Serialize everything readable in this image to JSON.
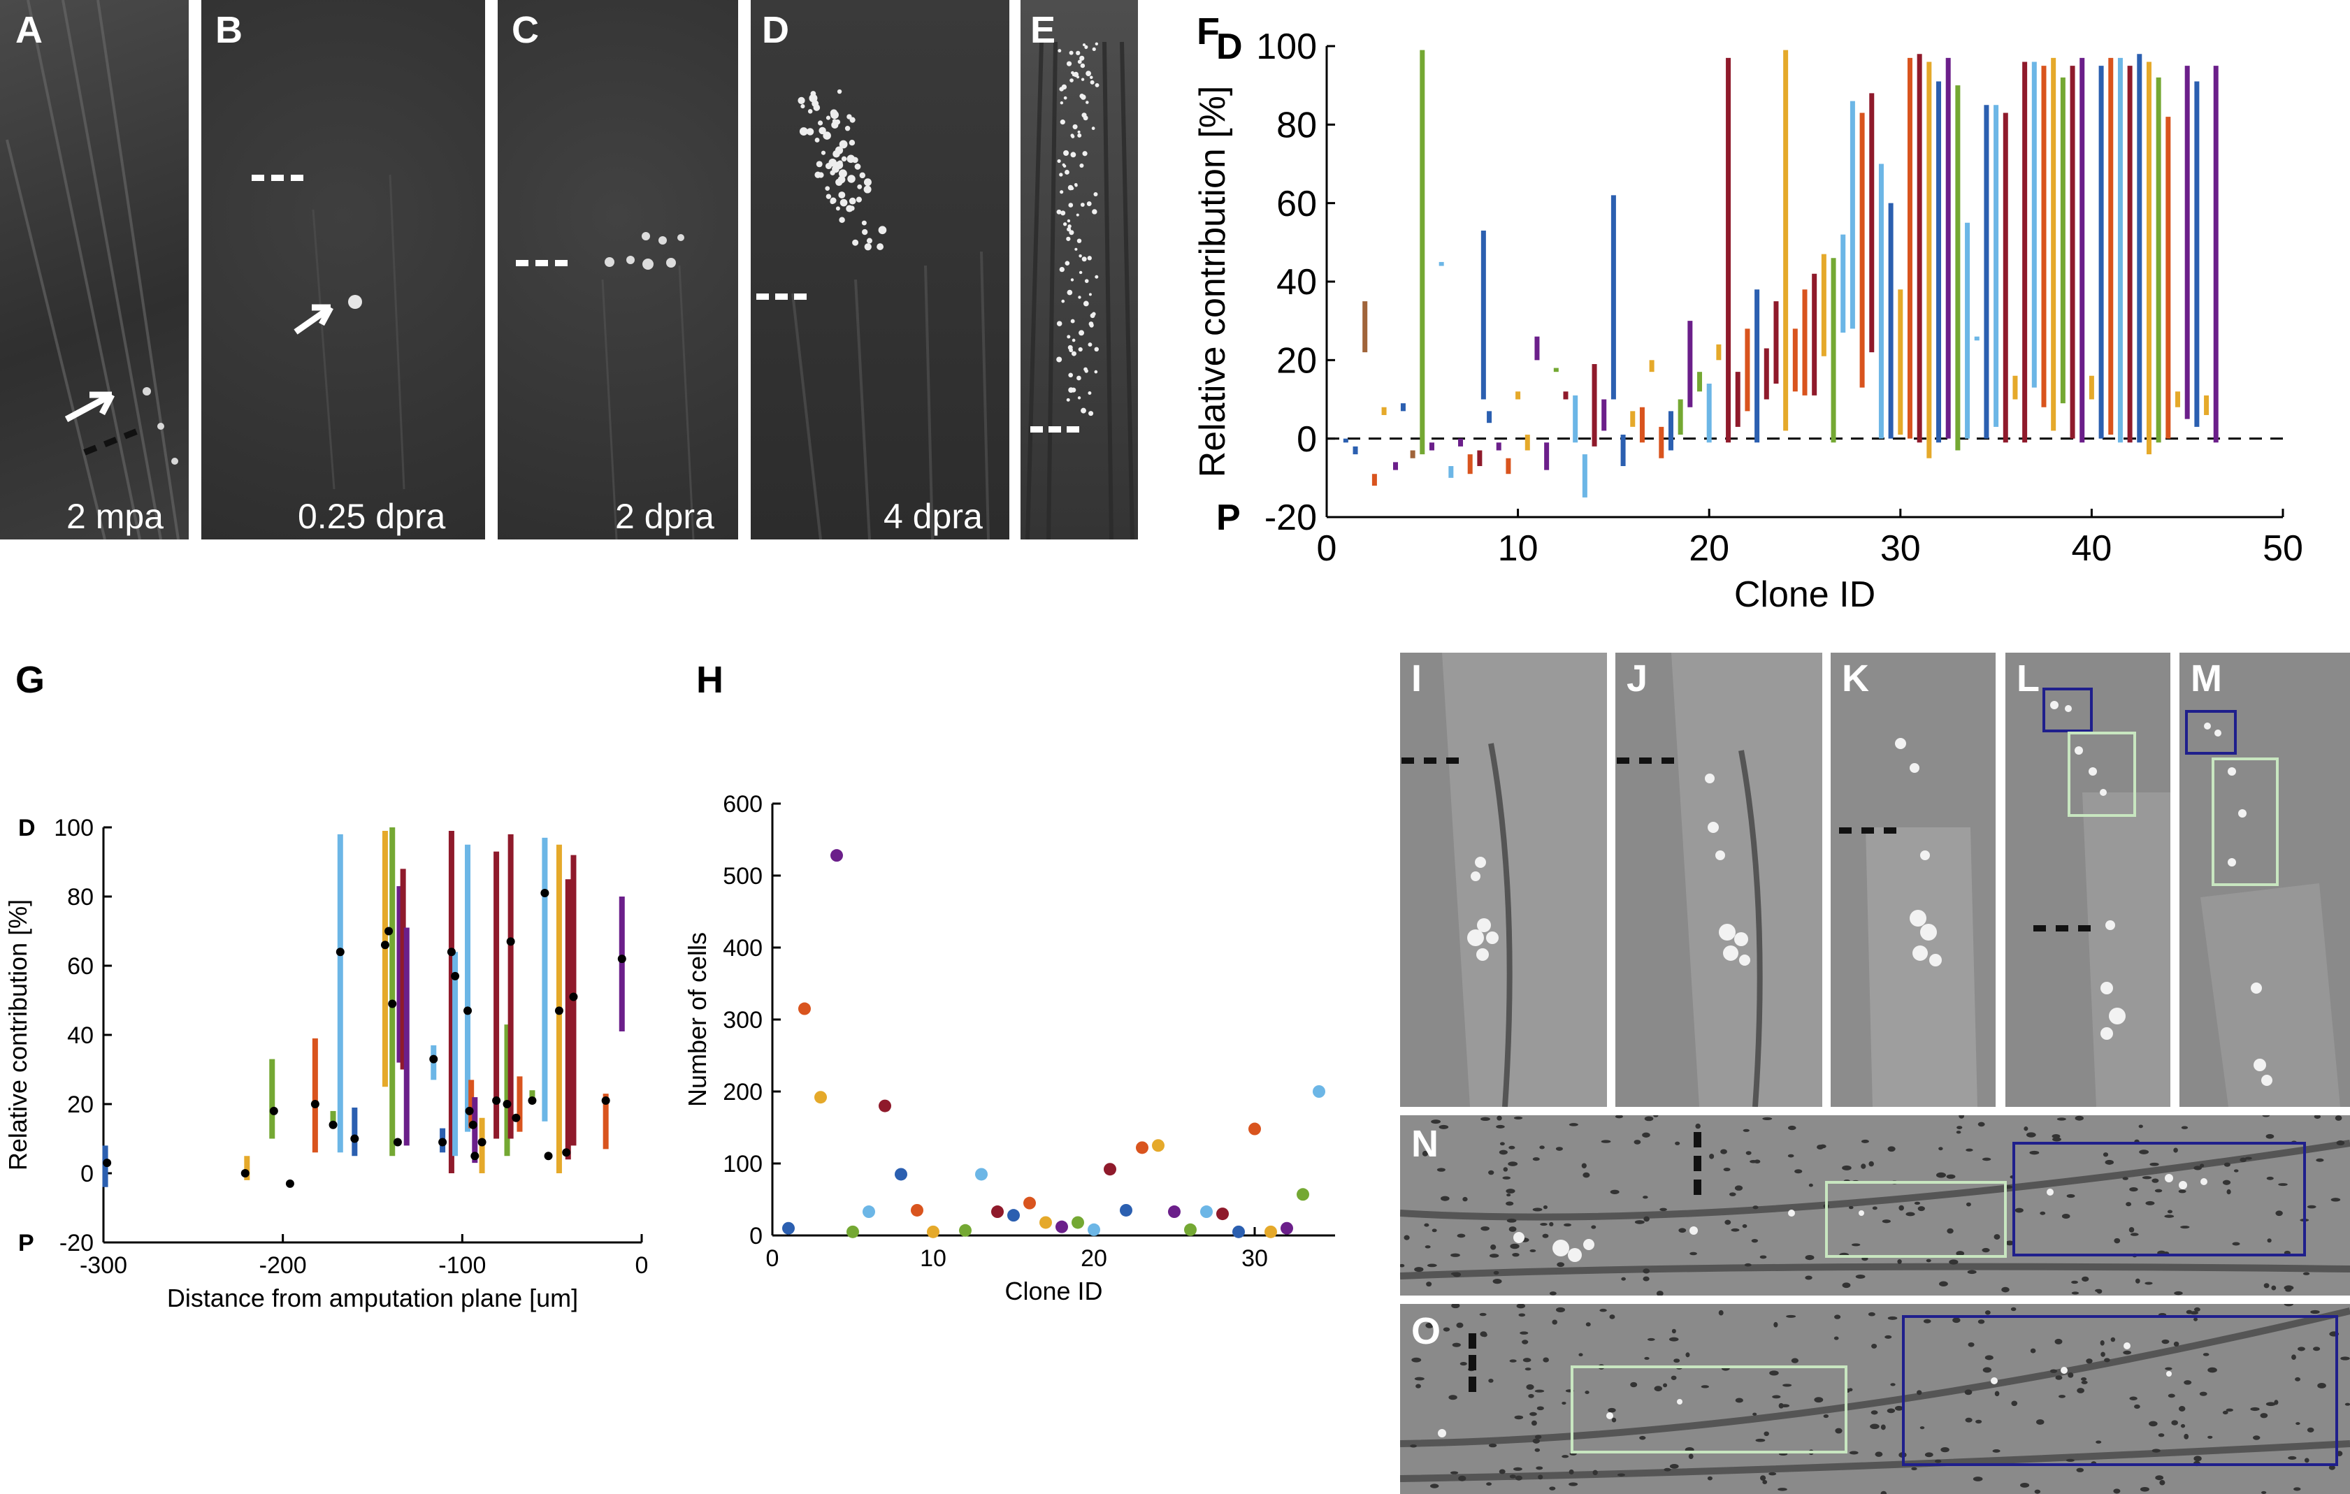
{
  "panels": {
    "A": {
      "label": "A",
      "caption": "2 mpa"
    },
    "B": {
      "label": "B",
      "caption": "0.25 dpra"
    },
    "C": {
      "label": "C",
      "caption": "2 dpra"
    },
    "D": {
      "label": "D",
      "caption": "4 dpra"
    },
    "E": {
      "label": "E",
      "caption": ""
    },
    "F": {
      "label": "F"
    },
    "G": {
      "label": "G"
    },
    "H": {
      "label": "H"
    },
    "I": {
      "label": "I"
    },
    "J": {
      "label": "J"
    },
    "K": {
      "label": "K"
    },
    "L": {
      "label": "L"
    },
    "M": {
      "label": "M"
    },
    "N": {
      "label": "N"
    },
    "O": {
      "label": "O"
    }
  },
  "colors": {
    "dark_blue": "#2b5fb0",
    "light_blue": "#6cb6e6",
    "orange": "#d9541e",
    "gold": "#e5a92a",
    "purple": "#6b1f8a",
    "green": "#74a833",
    "dark_red": "#8f1a2b",
    "brown": "#a0643a",
    "box_green": "#c8e6c0",
    "box_navy": "#1f1f8c"
  },
  "chart_data": [
    {
      "id": "F",
      "type": "bar",
      "title": "",
      "xlabel": "Clone ID",
      "ylabel": "Relative contribution [%]",
      "top_marker": "D",
      "bottom_marker": "P",
      "xlim": [
        0,
        50
      ],
      "ylim": [
        -20,
        100
      ],
      "xticks": [
        0,
        10,
        20,
        30,
        40,
        50
      ],
      "yticks": [
        -20,
        0,
        20,
        40,
        60,
        80,
        100
      ],
      "reference_line": 0,
      "ranges": [
        [
          1,
          -1,
          0,
          "dark_blue"
        ],
        [
          1.5,
          -4,
          -2,
          "dark_blue"
        ],
        [
          2,
          22,
          35,
          "brown"
        ],
        [
          2.5,
          -12,
          -9,
          "orange"
        ],
        [
          3,
          6,
          8,
          "gold"
        ],
        [
          3.6,
          -8,
          -6,
          "purple"
        ],
        [
          4,
          7,
          9,
          "dark_blue"
        ],
        [
          4.5,
          -5,
          -3,
          "brown"
        ],
        [
          5,
          -4,
          99,
          "green"
        ],
        [
          5.5,
          -3,
          -1,
          "purple"
        ],
        [
          6,
          44,
          45,
          "light_blue"
        ],
        [
          6.5,
          -10,
          -7,
          "light_blue"
        ],
        [
          7,
          -2,
          0,
          "purple"
        ],
        [
          7.5,
          -9,
          -4,
          "orange"
        ],
        [
          8,
          -7,
          -3,
          "dark_red"
        ],
        [
          8.2,
          10,
          53,
          "dark_blue"
        ],
        [
          8.5,
          4,
          7,
          "dark_blue"
        ],
        [
          9,
          -3,
          -1,
          "purple"
        ],
        [
          9.5,
          -9,
          -5,
          "orange"
        ],
        [
          10,
          10,
          12,
          "gold"
        ],
        [
          10.5,
          -3,
          1,
          "gold"
        ],
        [
          11,
          20,
          26,
          "purple"
        ],
        [
          11.5,
          -8,
          -1,
          "purple"
        ],
        [
          12,
          17,
          18,
          "green"
        ],
        [
          12.5,
          10,
          12,
          "dark_red"
        ],
        [
          13,
          -1,
          11,
          "light_blue"
        ],
        [
          13.5,
          -15,
          -4,
          "light_blue"
        ],
        [
          14,
          -2,
          19,
          "dark_red"
        ],
        [
          14.5,
          2,
          10,
          "purple"
        ],
        [
          15,
          10,
          62,
          "dark_blue"
        ],
        [
          15.5,
          -7,
          1,
          "dark_blue"
        ],
        [
          16,
          3,
          7,
          "gold"
        ],
        [
          16.5,
          -1,
          8,
          "orange"
        ],
        [
          17,
          17,
          20,
          "gold"
        ],
        [
          17.5,
          -5,
          3,
          "orange"
        ],
        [
          18,
          -3,
          7,
          "dark_blue"
        ],
        [
          18.5,
          1,
          10,
          "green"
        ],
        [
          19,
          8,
          30,
          "purple"
        ],
        [
          19.5,
          12,
          17,
          "green"
        ],
        [
          20,
          -1,
          14,
          "light_blue"
        ],
        [
          20.5,
          20,
          24,
          "gold"
        ],
        [
          21,
          -1,
          97,
          "dark_red"
        ],
        [
          21.5,
          3,
          17,
          "dark_red"
        ],
        [
          22,
          7,
          28,
          "orange"
        ],
        [
          22.5,
          -1,
          38,
          "dark_blue"
        ],
        [
          23,
          10,
          23,
          "dark_red"
        ],
        [
          23.5,
          14,
          35,
          "dark_red"
        ],
        [
          24,
          2,
          99,
          "gold"
        ],
        [
          24.5,
          12,
          28,
          "orange"
        ],
        [
          25,
          11,
          38,
          "orange"
        ],
        [
          25.5,
          11,
          42,
          "dark_red"
        ],
        [
          26,
          21,
          47,
          "gold"
        ],
        [
          26.5,
          -1,
          46,
          "green"
        ],
        [
          27,
          27,
          52,
          "light_blue"
        ],
        [
          27.5,
          28,
          86,
          "light_blue"
        ],
        [
          28,
          13,
          83,
          "orange"
        ],
        [
          28.5,
          22,
          88,
          "dark_red"
        ],
        [
          29,
          0,
          70,
          "light_blue"
        ],
        [
          29.5,
          0,
          60,
          "dark_blue"
        ],
        [
          30,
          1,
          38,
          "gold"
        ],
        [
          30.5,
          0,
          97,
          "orange"
        ],
        [
          31,
          -1,
          98,
          "dark_red"
        ],
        [
          31.5,
          -5,
          96,
          "gold"
        ],
        [
          32,
          -1,
          91,
          "dark_blue"
        ],
        [
          32.5,
          0,
          97,
          "purple"
        ],
        [
          33,
          -3,
          90,
          "green"
        ],
        [
          33.5,
          0,
          55,
          "light_blue"
        ],
        [
          34,
          25,
          26,
          "light_blue"
        ],
        [
          34.5,
          0,
          85,
          "dark_blue"
        ],
        [
          35,
          3,
          85,
          "light_blue"
        ],
        [
          35.5,
          -1,
          83,
          "dark_red"
        ],
        [
          36,
          10,
          16,
          "gold"
        ],
        [
          36.5,
          -1,
          96,
          "dark_red"
        ],
        [
          37,
          13,
          96,
          "light_blue"
        ],
        [
          37.5,
          8,
          95,
          "orange"
        ],
        [
          38,
          2,
          97,
          "gold"
        ],
        [
          38.5,
          9,
          92,
          "green"
        ],
        [
          39,
          0,
          95,
          "dark_red"
        ],
        [
          39.5,
          -1,
          97,
          "purple"
        ],
        [
          40,
          10,
          16,
          "gold"
        ],
        [
          40.5,
          0,
          95,
          "dark_blue"
        ],
        [
          41,
          1,
          97,
          "orange"
        ],
        [
          41.5,
          -1,
          97,
          "light_blue"
        ],
        [
          42,
          -1,
          95,
          "dark_red"
        ],
        [
          42.5,
          -1,
          98,
          "dark_blue"
        ],
        [
          43,
          -4,
          96,
          "gold"
        ],
        [
          43.5,
          -1,
          92,
          "green"
        ],
        [
          44,
          0,
          82,
          "orange"
        ],
        [
          44.5,
          8,
          12,
          "gold"
        ],
        [
          45,
          5,
          95,
          "purple"
        ],
        [
          45.5,
          3,
          91,
          "dark_blue"
        ],
        [
          46,
          6,
          11,
          "gold"
        ],
        [
          46.5,
          -1,
          95,
          "purple"
        ]
      ]
    },
    {
      "id": "G",
      "type": "scatter",
      "title": "",
      "xlabel": "Distance from amputation plane [um]",
      "ylabel": "Relative contribution [%]",
      "top_marker": "D",
      "bottom_marker": "P",
      "xlim": [
        -300,
        0
      ],
      "ylim": [
        -20,
        100
      ],
      "xticks": [
        -300,
        -200,
        -100,
        0
      ],
      "yticks": [
        -20,
        0,
        20,
        40,
        60,
        80,
        100
      ],
      "bars": [
        [
          -299,
          -4,
          8,
          "dark_blue"
        ],
        [
          -220,
          -2,
          5,
          "gold"
        ],
        [
          -206,
          10,
          33,
          "green"
        ],
        [
          -182,
          6,
          39,
          "orange"
        ],
        [
          -172,
          13,
          18,
          "green"
        ],
        [
          -168,
          6,
          98,
          "light_blue"
        ],
        [
          -160,
          5,
          19,
          "dark_blue"
        ],
        [
          -143,
          25,
          99,
          "gold"
        ],
        [
          -139,
          5,
          100,
          "green"
        ],
        [
          -135,
          32,
          83,
          "purple"
        ],
        [
          -133,
          30,
          88,
          "dark_red"
        ],
        [
          -131,
          8,
          71,
          "purple"
        ],
        [
          -116,
          27,
          37,
          "light_blue"
        ],
        [
          -111,
          6,
          13,
          "dark_blue"
        ],
        [
          -106,
          0,
          99,
          "dark_red"
        ],
        [
          -104,
          5,
          64,
          "light_blue"
        ],
        [
          -97,
          12,
          95,
          "light_blue"
        ],
        [
          -95,
          13,
          27,
          "orange"
        ],
        [
          -93,
          3,
          22,
          "purple"
        ],
        [
          -89,
          0,
          16,
          "gold"
        ],
        [
          -81,
          10,
          93,
          "dark_red"
        ],
        [
          -75,
          5,
          43,
          "green"
        ],
        [
          -73,
          10,
          98,
          "dark_red"
        ],
        [
          -68,
          12,
          28,
          "orange"
        ],
        [
          -61,
          20,
          24,
          "green"
        ],
        [
          -54,
          15,
          97,
          "light_blue"
        ],
        [
          -46,
          0,
          95,
          "gold"
        ],
        [
          -41,
          4,
          85,
          "dark_red"
        ],
        [
          -38,
          8,
          92,
          "dark_red"
        ],
        [
          -20,
          7,
          23,
          "orange"
        ],
        [
          -11,
          41,
          80,
          "purple"
        ]
      ],
      "means": [
        [
          -298,
          3
        ],
        [
          -221,
          0
        ],
        [
          -205,
          18
        ],
        [
          -196,
          -3
        ],
        [
          -182,
          20
        ],
        [
          -172,
          14
        ],
        [
          -168,
          64
        ],
        [
          -160,
          10
        ],
        [
          -143,
          66
        ],
        [
          -141,
          70
        ],
        [
          -139,
          49
        ],
        [
          -136,
          9
        ],
        [
          -116,
          33
        ],
        [
          -111,
          9
        ],
        [
          -106,
          64
        ],
        [
          -104,
          57
        ],
        [
          -97,
          47
        ],
        [
          -96,
          18
        ],
        [
          -94,
          14
        ],
        [
          -93,
          5
        ],
        [
          -89,
          9
        ],
        [
          -81,
          21
        ],
        [
          -75,
          20
        ],
        [
          -73,
          67
        ],
        [
          -70,
          16
        ],
        [
          -61,
          21
        ],
        [
          -54,
          81
        ],
        [
          -52,
          5
        ],
        [
          -46,
          47
        ],
        [
          -42,
          6
        ],
        [
          -38,
          51
        ],
        [
          -20,
          21
        ],
        [
          -11,
          62
        ]
      ]
    },
    {
      "id": "H",
      "type": "scatter",
      "title": "",
      "xlabel": "Clone ID",
      "ylabel": "Number of cells",
      "xlim": [
        0,
        35
      ],
      "ylim": [
        0,
        600
      ],
      "xticks": [
        0,
        10,
        20,
        30
      ],
      "yticks": [
        0,
        100,
        200,
        300,
        400,
        500,
        600
      ],
      "points": [
        [
          1,
          10,
          "dark_blue"
        ],
        [
          2,
          315,
          "orange"
        ],
        [
          3,
          192,
          "gold"
        ],
        [
          4,
          528,
          "purple"
        ],
        [
          5,
          5,
          "green"
        ],
        [
          6,
          33,
          "light_blue"
        ],
        [
          7,
          180,
          "dark_red"
        ],
        [
          8,
          85,
          "dark_blue"
        ],
        [
          9,
          35,
          "orange"
        ],
        [
          10,
          5,
          "gold"
        ],
        [
          12,
          7,
          "green"
        ],
        [
          13,
          85,
          "light_blue"
        ],
        [
          14,
          33,
          "dark_red"
        ],
        [
          15,
          28,
          "dark_blue"
        ],
        [
          16,
          45,
          "orange"
        ],
        [
          17,
          18,
          "gold"
        ],
        [
          18,
          12,
          "purple"
        ],
        [
          19,
          18,
          "green"
        ],
        [
          20,
          8,
          "light_blue"
        ],
        [
          21,
          92,
          "dark_red"
        ],
        [
          22,
          35,
          "dark_blue"
        ],
        [
          23,
          122,
          "orange"
        ],
        [
          24,
          125,
          "gold"
        ],
        [
          25,
          33,
          "purple"
        ],
        [
          26,
          8,
          "green"
        ],
        [
          27,
          33,
          "light_blue"
        ],
        [
          28,
          30,
          "dark_red"
        ],
        [
          29,
          5,
          "dark_blue"
        ],
        [
          30,
          148,
          "orange"
        ],
        [
          31,
          5,
          "gold"
        ],
        [
          32,
          10,
          "purple"
        ],
        [
          33,
          57,
          "green"
        ],
        [
          34,
          200,
          "light_blue"
        ]
      ]
    }
  ]
}
